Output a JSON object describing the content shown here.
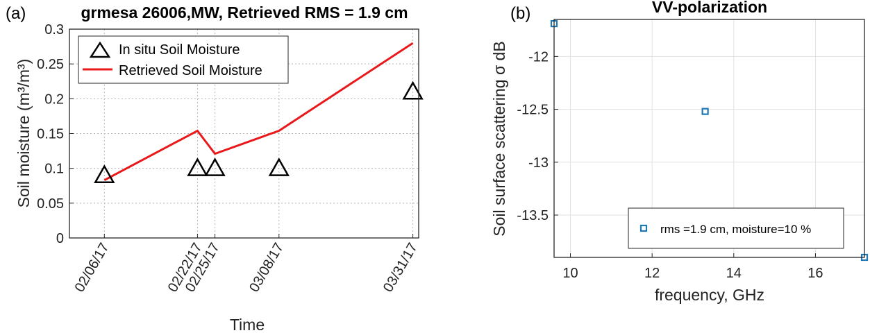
{
  "chart_data": [
    {
      "type": "line",
      "panel_label": "(a)",
      "title": "grmesa 26006,MW, Retrieved RMS = 1.9 cm",
      "xlabel": "Time",
      "ylabel": "Soil moisture (m³/m³)",
      "x": [
        "02/06/17",
        "02/22/17",
        "02/25/17",
        "03/08/17",
        "03/31/17"
      ],
      "ylim": [
        0,
        0.3
      ],
      "yticks": [
        "0",
        "0.05",
        "0.1",
        "0.15",
        "0.2",
        "0.25",
        "0.3"
      ],
      "grid": true,
      "legend_position": "top-left",
      "series": [
        {
          "name": "In situ Soil Moisture",
          "marker": "triangle",
          "color": "#000000",
          "values": [
            0.09,
            0.1,
            0.1,
            0.1,
            0.21
          ]
        },
        {
          "name": "Retrieved Soil Moisture",
          "marker": "line",
          "color": "#e8181b",
          "values": [
            0.083,
            0.154,
            0.121,
            0.154,
            0.28
          ]
        }
      ]
    },
    {
      "type": "scatter",
      "panel_label": "(b)",
      "title": "VV-polarization",
      "xlabel": "frequency, GHz",
      "ylabel": "Soil surface scattering σ dB",
      "xlim": [
        9.6,
        17.2
      ],
      "ylim": [
        -13.9,
        -11.65
      ],
      "xticks": [
        "10",
        "12",
        "14",
        "16"
      ],
      "yticks": [
        "-12",
        "-12.5",
        "-13",
        "-13.5"
      ],
      "grid": true,
      "legend_position": "bottom-right",
      "series": [
        {
          "name": "rms =1.9 cm, moisture=10 %",
          "marker": "square",
          "color": "#1f77b4",
          "x": [
            9.6,
            13.3,
            17.2
          ],
          "y": [
            -11.69,
            -12.52,
            -13.9
          ]
        }
      ]
    }
  ]
}
